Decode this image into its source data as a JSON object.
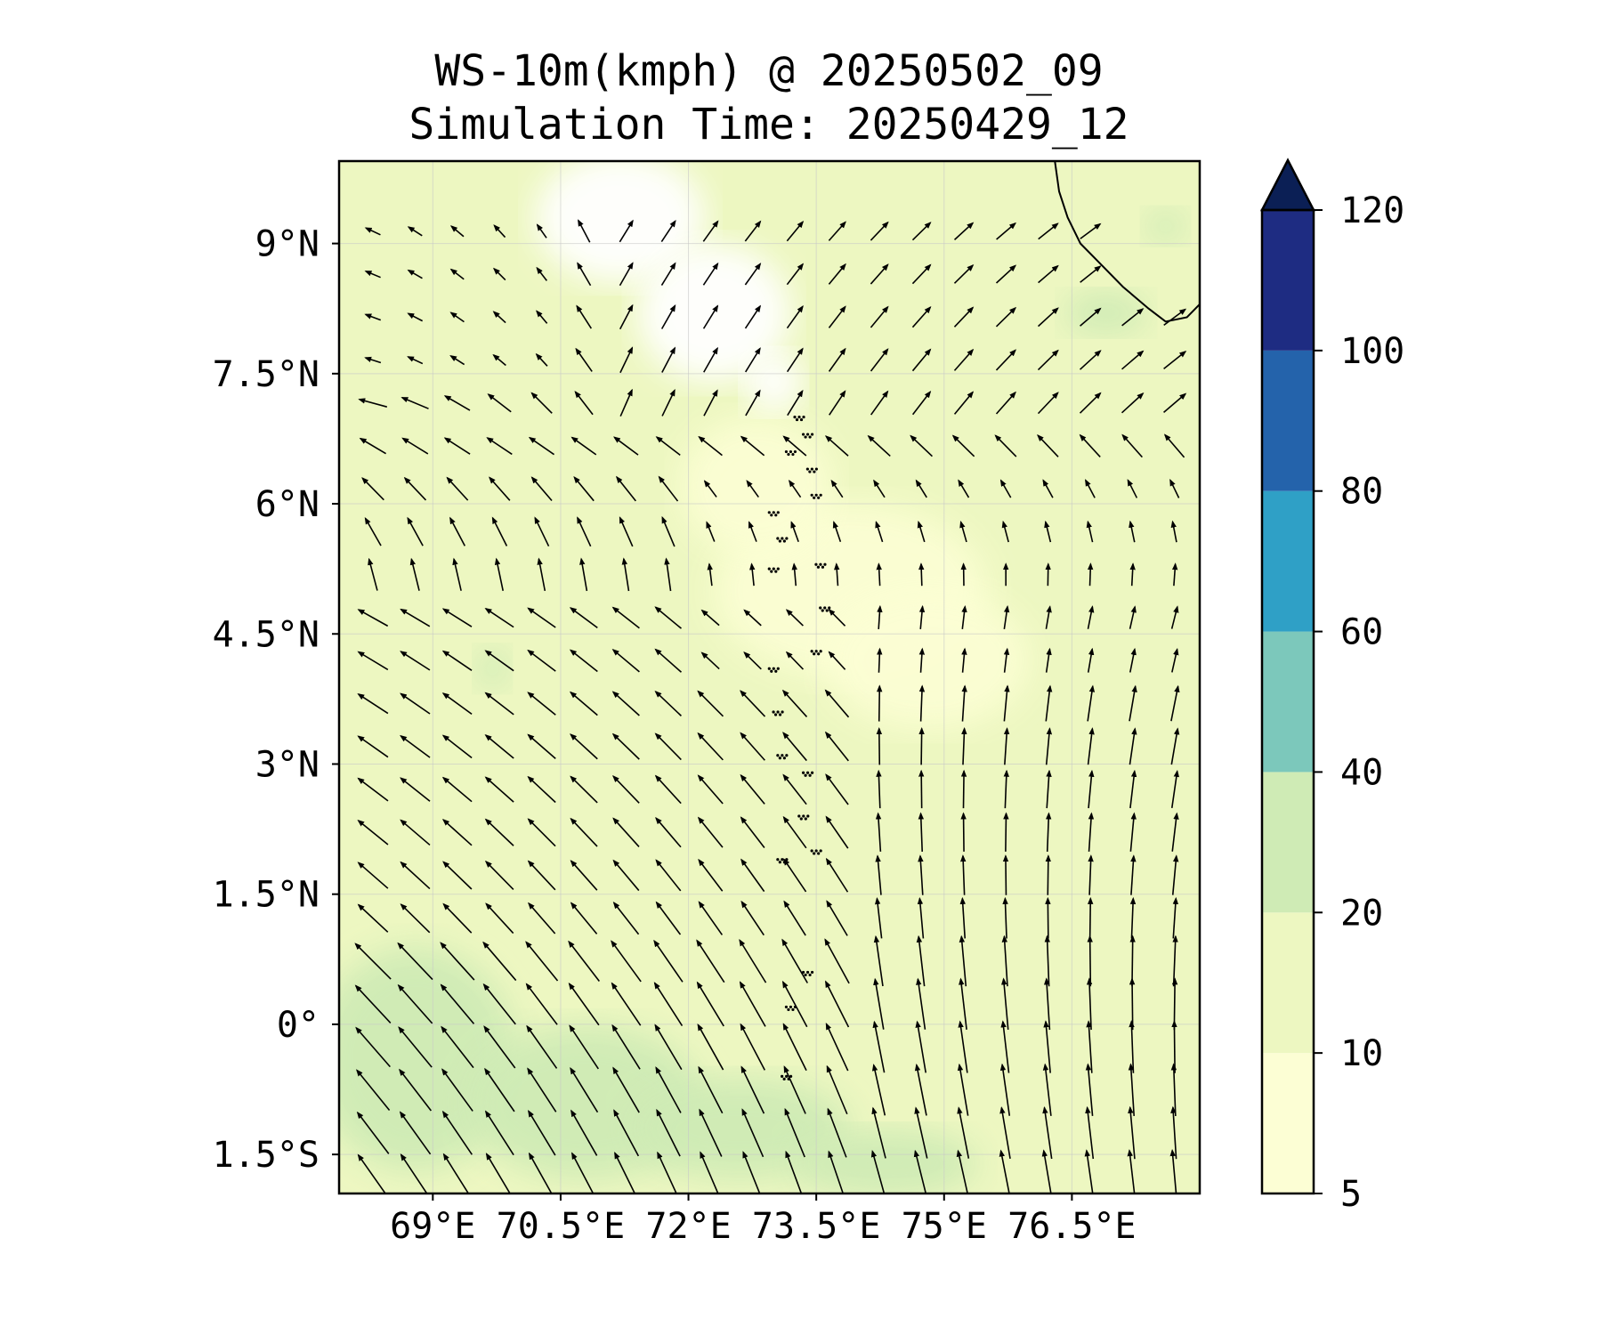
{
  "title": {
    "line1": "WS-10m(kmph) @ 20250502_09",
    "line2": "Simulation Time: 20250429_12"
  },
  "map": {
    "lon_range": [
      67.9,
      78.0
    ],
    "lat_range": [
      -1.95,
      9.95
    ],
    "x_ticks": [
      {
        "value": 69,
        "label": "69°E"
      },
      {
        "value": 70.5,
        "label": "70.5°E"
      },
      {
        "value": 72,
        "label": "72°E"
      },
      {
        "value": 73.5,
        "label": "73.5°E"
      },
      {
        "value": 75,
        "label": "75°E"
      },
      {
        "value": 76.5,
        "label": "76.5°E"
      }
    ],
    "y_ticks": [
      {
        "value": 9,
        "label": "9°N"
      },
      {
        "value": 7.5,
        "label": "7.5°N"
      },
      {
        "value": 6,
        "label": "6°N"
      },
      {
        "value": 4.5,
        "label": "4.5°N"
      },
      {
        "value": 3,
        "label": "3°N"
      },
      {
        "value": 1.5,
        "label": "1.5°N"
      },
      {
        "value": 0,
        "label": "0°"
      },
      {
        "value": -1.5,
        "label": "1.5°S"
      }
    ],
    "gridlines": true,
    "background_level_color": "#edf7c1"
  },
  "colorbar": {
    "levels": [
      5,
      10,
      20,
      40,
      60,
      80,
      100,
      120
    ],
    "colors": [
      "#fcfed4",
      "#edf7c1",
      "#cfebb5",
      "#7cc8bb",
      "#2fa0c6",
      "#2463ab",
      "#1e2c82"
    ],
    "extend_color": "#0b1f55",
    "extend": "max",
    "tick_labels": [
      "5",
      "10",
      "20",
      "40",
      "60",
      "80",
      "100",
      "120"
    ]
  },
  "regions": {
    "calm_white": [
      {
        "lon": 71.2,
        "lat": 9.3,
        "rlon": 1.0,
        "rlat": 0.75
      },
      {
        "lon": 72.3,
        "lat": 8.2,
        "rlon": 0.9,
        "rlat": 0.8
      },
      {
        "lon": 73.0,
        "lat": 7.4,
        "rlon": 0.35,
        "rlat": 0.35
      }
    ],
    "moderate_20_40": [
      {
        "lon": 68.8,
        "lat": -0.4,
        "rlon": 1.2,
        "rlat": 1.3
      },
      {
        "lon": 70.8,
        "lat": -0.9,
        "rlon": 1.4,
        "rlat": 0.9
      },
      {
        "lon": 72.6,
        "lat": -1.2,
        "rlon": 1.3,
        "rlat": 0.6
      },
      {
        "lon": 74.3,
        "lat": -1.6,
        "rlon": 1.1,
        "rlat": 0.4
      },
      {
        "lon": 76.9,
        "lat": 8.2,
        "rlon": 0.5,
        "rlat": 0.25
      },
      {
        "lon": 77.6,
        "lat": 9.2,
        "rlon": 0.25,
        "rlat": 0.2
      },
      {
        "lon": 69.7,
        "lat": 4.1,
        "rlon": 0.2,
        "rlat": 0.25
      }
    ],
    "light_5_10": [
      {
        "lon": 73.9,
        "lat": 5.0,
        "rlon": 1.6,
        "rlat": 1.0
      },
      {
        "lon": 74.8,
        "lat": 4.2,
        "rlon": 1.2,
        "rlat": 0.8
      },
      {
        "lon": 72.8,
        "lat": 6.2,
        "rlon": 0.9,
        "rlat": 0.8
      }
    ]
  },
  "coastline": {
    "india_tip": [
      [
        76.3,
        9.95
      ],
      [
        76.35,
        9.6
      ],
      [
        76.45,
        9.3
      ],
      [
        76.6,
        9.0
      ],
      [
        76.85,
        8.75
      ],
      [
        77.1,
        8.5
      ],
      [
        77.4,
        8.25
      ],
      [
        77.6,
        8.1
      ],
      [
        77.85,
        8.15
      ],
      [
        78.0,
        8.3
      ]
    ],
    "maldives_islands": [
      [
        73.3,
        7.0
      ],
      [
        73.4,
        6.8
      ],
      [
        73.2,
        6.6
      ],
      [
        73.45,
        6.4
      ],
      [
        73.5,
        6.1
      ],
      [
        73.0,
        5.9
      ],
      [
        73.1,
        5.6
      ],
      [
        73.55,
        5.3
      ],
      [
        73.0,
        5.25
      ],
      [
        73.6,
        4.8
      ],
      [
        73.5,
        4.3
      ],
      [
        73.0,
        4.1
      ],
      [
        73.05,
        3.6
      ],
      [
        73.1,
        3.1
      ],
      [
        73.4,
        2.9
      ],
      [
        73.35,
        2.4
      ],
      [
        73.5,
        2.0
      ],
      [
        73.1,
        1.9
      ],
      [
        73.4,
        0.6
      ],
      [
        73.2,
        0.2
      ],
      [
        73.15,
        -0.6
      ]
    ]
  },
  "wind_field": {
    "lon_start": 68.3,
    "lon_step": 0.495,
    "lat_start": -1.75,
    "lat_step": 0.495,
    "cols": 20,
    "rows": 23,
    "note_units": "kmph"
  }
}
